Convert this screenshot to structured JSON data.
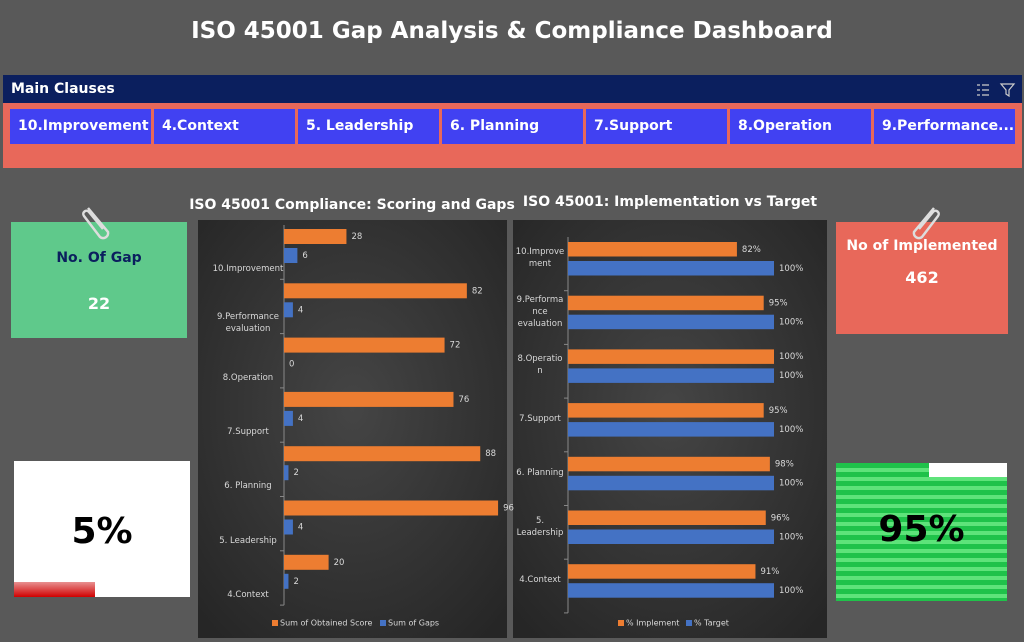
{
  "title": "ISO 45001 Gap Analysis & Compliance Dashboard",
  "slicer": {
    "header": "Main Clauses",
    "items": [
      "10.Improvement",
      "4.Context",
      "5. Leadership",
      "6. Planning",
      "7.Support",
      "8.Operation",
      "9.Performance..."
    ]
  },
  "cards": {
    "gap": {
      "title": "No. Of Gap",
      "value": 22
    },
    "implemented": {
      "title": "No of Implemented",
      "value": 462
    }
  },
  "gauges": {
    "gap_percent": "5%",
    "implemented_percent": "95%"
  },
  "chart_data": [
    {
      "type": "bar",
      "title": "ISO 45001 Compliance: Scoring and Gaps",
      "categories": [
        "10.Improvement",
        "9.Performance evaluation",
        "8.Operation",
        "7.Support",
        "6. Planning",
        "5. Leadership",
        "4.Context"
      ],
      "series": [
        {
          "name": "Sum of Obtained Score",
          "color": "#ed7d31",
          "values": [
            28,
            82,
            72,
            76,
            88,
            96,
            20
          ]
        },
        {
          "name": "Sum of Gaps",
          "color": "#4472c4",
          "values": [
            6,
            4,
            0,
            4,
            2,
            4,
            2
          ]
        }
      ],
      "xlim": [
        0,
        100
      ]
    },
    {
      "type": "bar",
      "title": "ISO 45001: Implementation vs Target",
      "categories": [
        "10.Improvement",
        "9.Performance evaluation",
        "8.Operation",
        "7.Support",
        "6. Planning",
        "5. Leadership",
        "4.Context"
      ],
      "series": [
        {
          "name": "% Implement",
          "color": "#ed7d31",
          "values": [
            82,
            95,
            100,
            95,
            98,
            96,
            91
          ],
          "value_labels": [
            "82%",
            "95%",
            "100%",
            "95%",
            "98%",
            "96%",
            "91%"
          ]
        },
        {
          "name": "% Target",
          "color": "#4472c4",
          "values": [
            100,
            100,
            100,
            100,
            100,
            100,
            100
          ],
          "value_labels": [
            "100%",
            "100%",
            "100%",
            "100%",
            "100%",
            "100%",
            "100%"
          ]
        }
      ],
      "xlim": [
        0,
        100
      ]
    }
  ]
}
